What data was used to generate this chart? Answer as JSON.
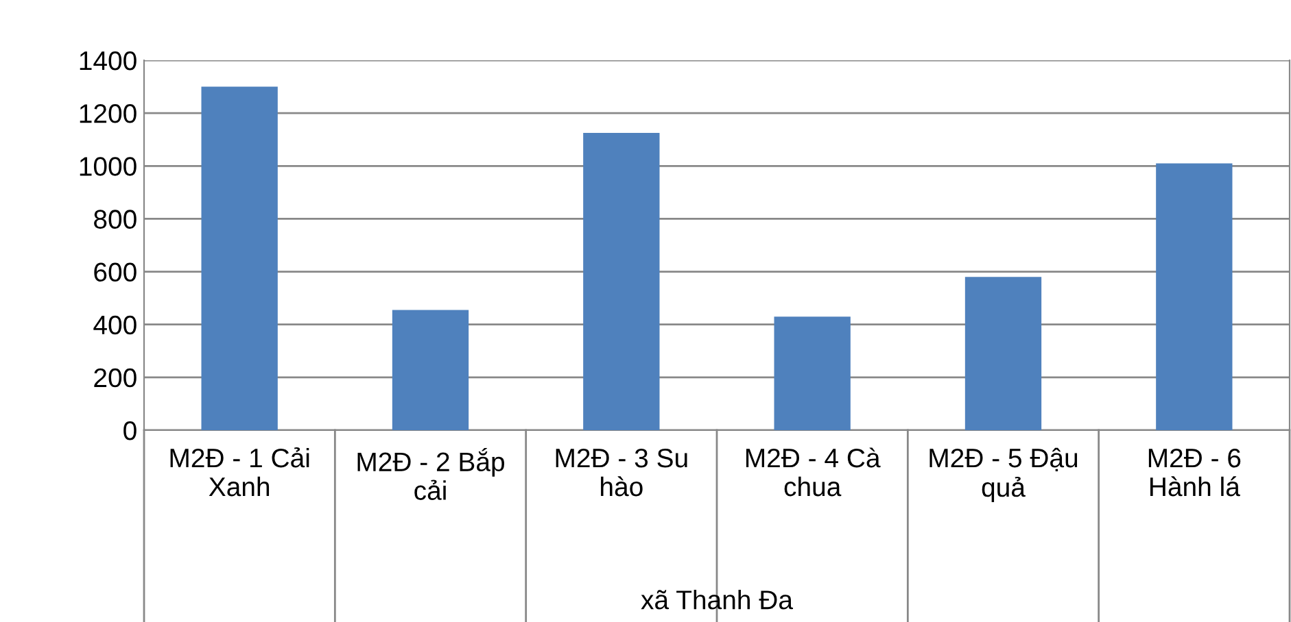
{
  "chart_data": {
    "type": "bar",
    "categories": [
      "M2Đ - 1 Cải\nXanh",
      "M2Đ - 2 Bắp\ncải",
      "M2Đ - 3 Su\nhào",
      "M2Đ - 4 Cà\nchua",
      "M2Đ - 5 Đậu\nquả",
      "M2Đ - 6\nHành lá"
    ],
    "values": [
      1300,
      455,
      1125,
      430,
      580,
      1010
    ],
    "color": "#4f81bd",
    "xlabel": "xã Thanh Đa",
    "ylim": [
      0,
      1400
    ],
    "yticks": [
      0,
      200,
      400,
      600,
      800,
      1000,
      1200,
      1400
    ],
    "grid": "y",
    "legend": false
  }
}
